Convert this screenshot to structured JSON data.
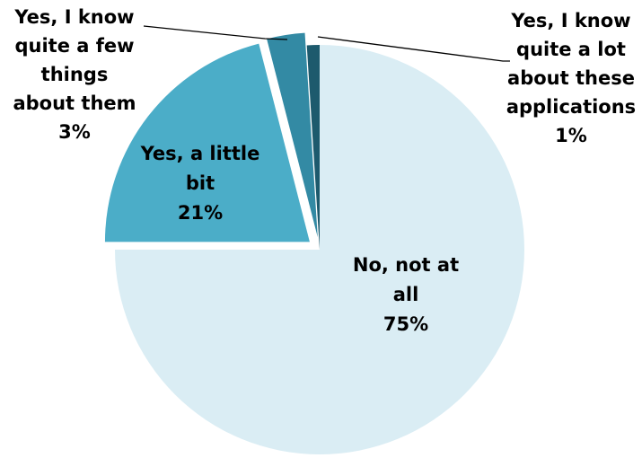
{
  "chart_data": {
    "type": "pie",
    "title": "",
    "categories": [
      "No, not at all",
      "Yes, a little bit",
      "Yes, I know quite a few things about them",
      "Yes, I know quite a lot about these applications"
    ],
    "values": [
      75,
      21,
      3,
      1
    ],
    "value_labels": [
      "75%",
      "21%",
      "3%",
      "1%"
    ],
    "colors": [
      "#daedf4",
      "#4badc8",
      "#338aa4",
      "#1d5a6d"
    ],
    "label_lines": [
      [
        "No, not at",
        "all"
      ],
      [
        "Yes, a little",
        "bit"
      ],
      [
        "Yes, I know",
        "quite a few",
        "things",
        "about them"
      ],
      [
        "Yes, I know",
        "quite a lot",
        "about these",
        "applications"
      ]
    ],
    "start_angle_deg": 0,
    "direction": "clockwise",
    "exploded": [
      false,
      true,
      true,
      false
    ],
    "legend": "none"
  }
}
